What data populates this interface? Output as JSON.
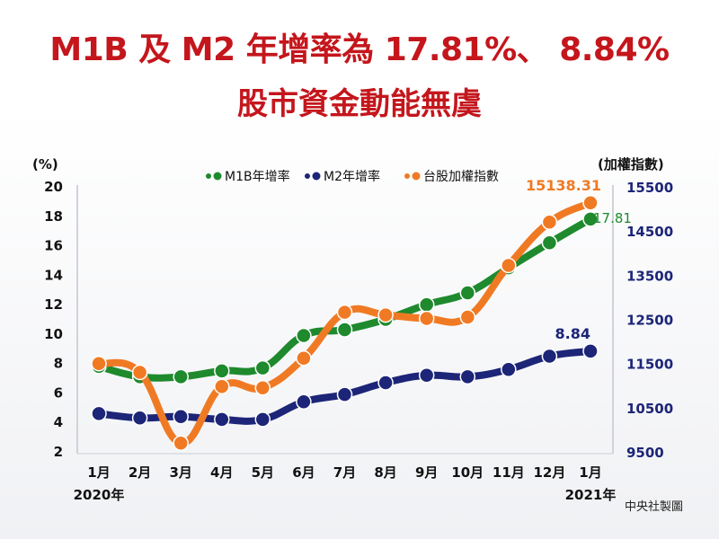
{
  "header": {
    "title": "M1B 及 M2 年增率為 17.81%、 8.84%",
    "subtitle": "股市資金動能無虞"
  },
  "credit": "中央社製圖",
  "chart_data": {
    "type": "line",
    "left_axis_label": "(%)",
    "right_axis_label": "(加權指數)",
    "categories": [
      "1月",
      "2月",
      "3月",
      "4月",
      "5月",
      "6月",
      "7月",
      "8月",
      "9月",
      "10月",
      "11月",
      "12月",
      "1月"
    ],
    "year_labels": [
      {
        "index": 0,
        "text": "2020年"
      },
      {
        "index": 12,
        "text": "2021年"
      }
    ],
    "left_ylim": [
      2,
      20
    ],
    "left_ticks": [
      2,
      4,
      6,
      8,
      10,
      12,
      14,
      16,
      18,
      20
    ],
    "right_ylim": [
      9500,
      15500
    ],
    "right_ticks": [
      9500,
      10500,
      11500,
      12500,
      13500,
      14500,
      15500
    ],
    "legend_position": "top",
    "grid": false,
    "series": [
      {
        "name": "M1B年增率",
        "axis": "left",
        "color": "#1e8a2d",
        "values": [
          7.8,
          7.1,
          7.1,
          7.5,
          7.7,
          9.9,
          10.3,
          11.0,
          12.0,
          12.8,
          14.5,
          16.2,
          17.81
        ],
        "end_label": "17.81"
      },
      {
        "name": "M2年增率",
        "axis": "left",
        "color": "#1c2577",
        "values": [
          4.6,
          4.3,
          4.4,
          4.2,
          4.2,
          5.4,
          5.9,
          6.7,
          7.2,
          7.1,
          7.6,
          8.5,
          8.84
        ],
        "end_label": "8.84"
      },
      {
        "name": "台股加權指數",
        "axis": "right",
        "color": "#f07a24",
        "values": [
          11500,
          11300,
          9700,
          10980,
          10950,
          11620,
          12660,
          12600,
          12520,
          12550,
          13720,
          14700,
          15138.31
        ],
        "end_label": "15138.31"
      }
    ]
  }
}
